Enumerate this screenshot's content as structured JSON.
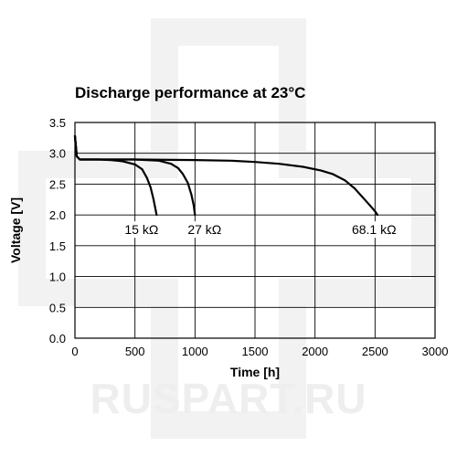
{
  "chart_data": {
    "type": "line",
    "title": "Discharge performance at 23°C",
    "xlabel": "Time [h]",
    "ylabel": "Voltage [V]",
    "xlim": [
      0,
      3000
    ],
    "ylim": [
      0,
      3.5
    ],
    "x_ticks": [
      0,
      500,
      1000,
      1500,
      2000,
      2500,
      3000
    ],
    "y_ticks": [
      0.0,
      0.5,
      1.0,
      1.5,
      2.0,
      2.5,
      3.0,
      3.5
    ],
    "x_tick_labels": [
      "0",
      "500",
      "1000",
      "1500",
      "2000",
      "2500",
      "3000"
    ],
    "y_tick_labels": [
      "0.0",
      "0.5",
      "1.0",
      "1.5",
      "2.0",
      "2.5",
      "3.0",
      "3.5"
    ],
    "grid": true,
    "series": [
      {
        "name": "15 kΩ",
        "x": [
          0,
          15,
          40,
          100,
          200,
          300,
          400,
          500,
          560,
          600,
          630,
          655,
          670,
          680
        ],
        "y": [
          3.28,
          2.95,
          2.9,
          2.9,
          2.9,
          2.89,
          2.87,
          2.82,
          2.74,
          2.6,
          2.45,
          2.25,
          2.1,
          2.0
        ]
      },
      {
        "name": "27 kΩ",
        "x": [
          0,
          15,
          40,
          100,
          300,
          500,
          700,
          800,
          860,
          900,
          940,
          970,
          990,
          1000
        ],
        "y": [
          3.28,
          2.95,
          2.9,
          2.9,
          2.9,
          2.9,
          2.88,
          2.83,
          2.76,
          2.66,
          2.52,
          2.33,
          2.15,
          2.0
        ]
      },
      {
        "name": "68.1 kΩ",
        "x": [
          0,
          15,
          40,
          100,
          500,
          1000,
          1300,
          1500,
          1700,
          1900,
          2050,
          2150,
          2250,
          2330,
          2400,
          2450,
          2500,
          2520
        ],
        "y": [
          3.28,
          2.95,
          2.9,
          2.9,
          2.9,
          2.89,
          2.88,
          2.86,
          2.83,
          2.78,
          2.72,
          2.66,
          2.56,
          2.43,
          2.28,
          2.17,
          2.06,
          2.0
        ]
      }
    ],
    "annotations": [
      {
        "text": "15 kΩ",
        "series": "15 kΩ"
      },
      {
        "text": "27 kΩ",
        "series": "27 kΩ"
      },
      {
        "text": "68.1 kΩ",
        "series": "68.1 kΩ"
      }
    ]
  },
  "watermark": {
    "text": "RUSPART.RU",
    "color": "#eeeeee"
  }
}
